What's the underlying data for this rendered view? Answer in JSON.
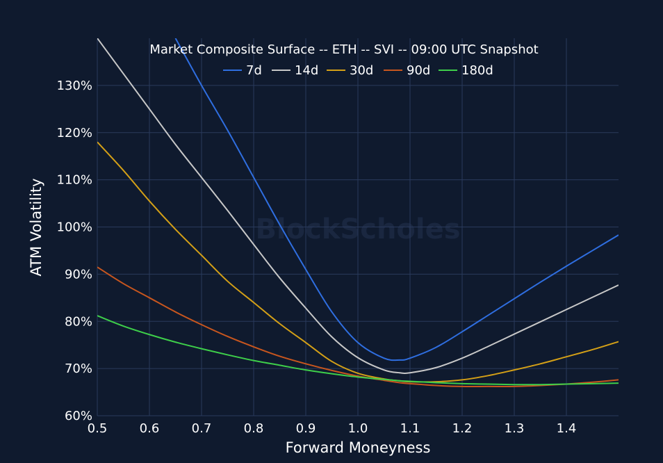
{
  "chart_data": {
    "type": "line",
    "title": "Market Composite Surface -- ETH -- SVI -- 09:00 UTC Snapshot",
    "xlabel": "Forward Moneyness",
    "ylabel": "ATM Volatility",
    "watermark": "BlockScholes",
    "xlim": [
      0.5,
      1.5
    ],
    "ylim": [
      60,
      140
    ],
    "grid": true,
    "legend_position": "top",
    "x_ticks": [
      {
        "value": 0.5,
        "label": "0.5"
      },
      {
        "value": 0.6,
        "label": "0.6"
      },
      {
        "value": 0.7,
        "label": "0.7"
      },
      {
        "value": 0.8,
        "label": "0.8"
      },
      {
        "value": 0.9,
        "label": "0.9"
      },
      {
        "value": 1.0,
        "label": "1.0"
      },
      {
        "value": 1.1,
        "label": "1.1"
      },
      {
        "value": 1.2,
        "label": "1.2"
      },
      {
        "value": 1.3,
        "label": "1.3"
      },
      {
        "value": 1.4,
        "label": "1.4"
      }
    ],
    "y_ticks": [
      {
        "value": 60,
        "label": "60%"
      },
      {
        "value": 70,
        "label": "70%"
      },
      {
        "value": 80,
        "label": "80%"
      },
      {
        "value": 90,
        "label": "90%"
      },
      {
        "value": 100,
        "label": "100%"
      },
      {
        "value": 110,
        "label": "110%"
      },
      {
        "value": 120,
        "label": "120%"
      },
      {
        "value": 130,
        "label": "130%"
      }
    ],
    "x": [
      0.5,
      0.55,
      0.6,
      0.65,
      0.7,
      0.75,
      0.8,
      0.85,
      0.9,
      0.95,
      1.0,
      1.05,
      1.08,
      1.1,
      1.15,
      1.2,
      1.25,
      1.3,
      1.35,
      1.4,
      1.45,
      1.5
    ],
    "series": [
      {
        "name": "7d",
        "color": "#2f6ee0",
        "values": [
          null,
          null,
          null,
          140,
          130,
          120.5,
          110.5,
          100.5,
          91,
          82,
          75.5,
          72.2,
          71.8,
          72.2,
          74.5,
          77.8,
          81.3,
          84.8,
          88.3,
          91.7,
          95,
          98.3
        ]
      },
      {
        "name": "14d",
        "color": "#c8c8c8",
        "values": [
          140,
          132.5,
          125,
          117.5,
          110.5,
          103.5,
          96.3,
          89.2,
          82.8,
          76.7,
          72.3,
          69.7,
          69.1,
          69.1,
          70.2,
          72.2,
          74.7,
          77.3,
          79.9,
          82.5,
          85.1,
          87.7
        ]
      },
      {
        "name": "30d",
        "color": "#d4a017",
        "values": [
          118,
          112,
          105.5,
          99.5,
          94,
          88.5,
          84,
          79.5,
          75.5,
          71.5,
          69,
          67.8,
          67.4,
          67.2,
          67.2,
          67.6,
          68.5,
          69.7,
          71,
          72.5,
          74,
          75.7
        ]
      },
      {
        "name": "90d",
        "color": "#c8561e",
        "values": [
          91.5,
          88,
          85,
          82,
          79.3,
          76.8,
          74.6,
          72.6,
          71,
          69.6,
          68.4,
          67.5,
          67,
          66.8,
          66.4,
          66.2,
          66.2,
          66.2,
          66.4,
          66.7,
          67.1,
          67.6
        ]
      },
      {
        "name": "180d",
        "color": "#3ecf4a",
        "values": [
          81.2,
          79,
          77.2,
          75.6,
          74.2,
          72.9,
          71.7,
          70.7,
          69.7,
          68.9,
          68.2,
          67.7,
          67.4,
          67.3,
          67,
          66.8,
          66.7,
          66.6,
          66.6,
          66.7,
          66.8,
          66.9
        ]
      }
    ]
  }
}
